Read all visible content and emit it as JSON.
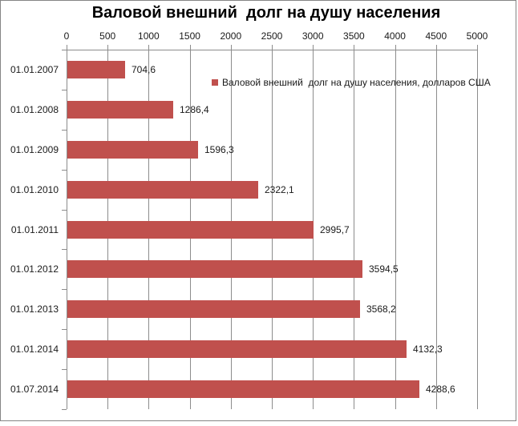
{
  "chart_data": {
    "type": "bar",
    "orientation": "horizontal",
    "title": "Валовой внешний  долг на душу населения",
    "legend_label": "Валовой внешний  долг на душу населения, долларов США",
    "legend_position": "inside-top",
    "categories": [
      "01.01.2007",
      "01.01.2008",
      "01.01.2009",
      "01.01.2010",
      "01.01.2011",
      "01.01.2012",
      "01.01.2013",
      "01.01.2014",
      "01.07.2014"
    ],
    "values": [
      704.6,
      1286.4,
      1596.3,
      2322.1,
      2995.7,
      3594.5,
      3568.2,
      4132.3,
      4288.6
    ],
    "value_labels": [
      "704,6",
      "1286,4",
      "1596,3",
      "2322,1",
      "2995,7",
      "3594,5",
      "3568,2",
      "4132,3",
      "4288,6"
    ],
    "xlim": [
      0,
      5000
    ],
    "x_ticks": [
      0,
      500,
      1000,
      1500,
      2000,
      2500,
      3000,
      3500,
      4000,
      4500,
      5000
    ],
    "x_tick_labels": [
      "0",
      "500",
      "1000",
      "1500",
      "2000",
      "2500",
      "3000",
      "3500",
      "4000",
      "4500",
      "5000"
    ],
    "grid": true,
    "xlabel": "",
    "ylabel": ""
  },
  "colors": {
    "bar": "#C0504D",
    "gridline": "#8C8C8C",
    "axis_line": "#8C8C8C",
    "chart_border": "#858585",
    "text": "#1A1A1A",
    "background": "#FFFFFF"
  }
}
